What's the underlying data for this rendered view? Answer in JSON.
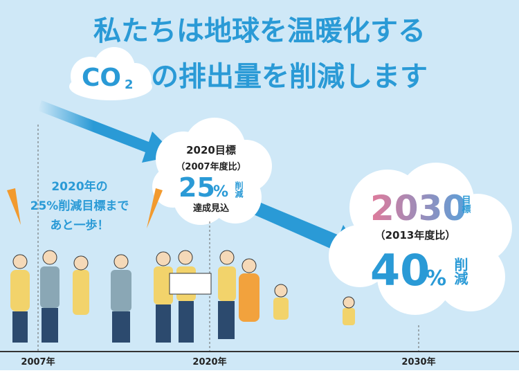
{
  "title": {
    "line1": "私たちは地球を温暖化する",
    "co2": "CO",
    "co2_sub": "2",
    "line2": "の排出量を削減します"
  },
  "goal_2020": {
    "heading": "2020目標",
    "basis": "（2007年度比）",
    "number": "25",
    "unit": "%",
    "reduction": "削減",
    "status": "達成見込"
  },
  "callout": {
    "lines": [
      "2020年の",
      "25%削減目標まで",
      "あと一歩！"
    ]
  },
  "goal_2030": {
    "year": "2030",
    "target": "目標",
    "basis": "（2013年度比）",
    "number": "40",
    "unit": "%",
    "reduction": "削減"
  },
  "timeline": {
    "labels": [
      "2007年",
      "2020年",
      "2030年"
    ]
  }
}
